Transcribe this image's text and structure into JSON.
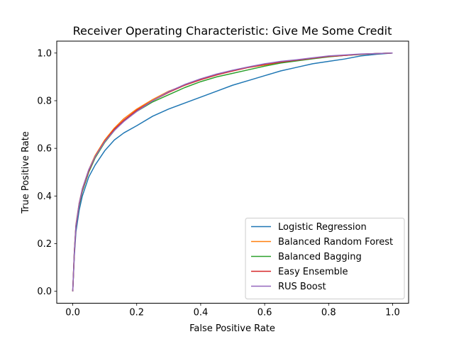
{
  "chart_data": {
    "type": "line",
    "title": "Receiver Operating Characteristic: Give Me Some Credit",
    "xlabel": "False Positive Rate",
    "ylabel": "True Positive Rate",
    "xlim": [
      -0.05,
      1.05
    ],
    "ylim": [
      -0.05,
      1.05
    ],
    "xticks": [
      0.0,
      0.2,
      0.4,
      0.6,
      0.8,
      1.0
    ],
    "yticks": [
      0.0,
      0.2,
      0.4,
      0.6,
      0.8,
      1.0
    ],
    "xtick_labels": [
      "0.0",
      "0.2",
      "0.4",
      "0.6",
      "0.8",
      "1.0"
    ],
    "ytick_labels": [
      "0.0",
      "0.2",
      "0.4",
      "0.6",
      "0.8",
      "1.0"
    ],
    "grid": false,
    "legend_position": "lower-right",
    "series": [
      {
        "name": "Logistic Regression",
        "color": "#1f77b4",
        "x": [
          0,
          0.005,
          0.01,
          0.02,
          0.03,
          0.05,
          0.07,
          0.1,
          0.13,
          0.16,
          0.2,
          0.25,
          0.3,
          0.35,
          0.4,
          0.45,
          0.5,
          0.55,
          0.6,
          0.65,
          0.7,
          0.75,
          0.8,
          0.85,
          0.9,
          0.95,
          1.0
        ],
        "y": [
          0,
          0.15,
          0.25,
          0.34,
          0.4,
          0.48,
          0.53,
          0.59,
          0.635,
          0.665,
          0.695,
          0.735,
          0.765,
          0.79,
          0.815,
          0.84,
          0.865,
          0.885,
          0.905,
          0.925,
          0.94,
          0.955,
          0.965,
          0.975,
          0.988,
          0.995,
          1.0
        ]
      },
      {
        "name": "Balanced Random Forest",
        "color": "#ff7f0e",
        "x": [
          0,
          0.005,
          0.01,
          0.02,
          0.03,
          0.05,
          0.07,
          0.1,
          0.13,
          0.16,
          0.2,
          0.25,
          0.3,
          0.35,
          0.4,
          0.45,
          0.5,
          0.55,
          0.6,
          0.65,
          0.7,
          0.75,
          0.8,
          0.85,
          0.9,
          0.95,
          1.0
        ],
        "y": [
          0,
          0.17,
          0.28,
          0.37,
          0.43,
          0.51,
          0.57,
          0.635,
          0.685,
          0.725,
          0.765,
          0.805,
          0.84,
          0.865,
          0.89,
          0.91,
          0.925,
          0.94,
          0.95,
          0.96,
          0.97,
          0.978,
          0.985,
          0.99,
          0.995,
          0.998,
          1.0
        ]
      },
      {
        "name": "Balanced Bagging",
        "color": "#2ca02c",
        "x": [
          0,
          0.005,
          0.01,
          0.02,
          0.03,
          0.05,
          0.07,
          0.1,
          0.13,
          0.16,
          0.2,
          0.25,
          0.3,
          0.35,
          0.4,
          0.45,
          0.5,
          0.55,
          0.6,
          0.65,
          0.7,
          0.75,
          0.8,
          0.85,
          0.9,
          0.95,
          1.0
        ],
        "y": [
          0,
          0.165,
          0.275,
          0.36,
          0.42,
          0.5,
          0.56,
          0.625,
          0.675,
          0.715,
          0.755,
          0.795,
          0.825,
          0.855,
          0.88,
          0.9,
          0.915,
          0.93,
          0.945,
          0.958,
          0.967,
          0.976,
          0.984,
          0.99,
          0.994,
          0.998,
          1.0
        ]
      },
      {
        "name": "Easy Ensemble",
        "color": "#d62728",
        "x": [
          0,
          0.005,
          0.01,
          0.02,
          0.03,
          0.05,
          0.07,
          0.1,
          0.13,
          0.16,
          0.2,
          0.25,
          0.3,
          0.35,
          0.4,
          0.45,
          0.5,
          0.55,
          0.6,
          0.65,
          0.7,
          0.75,
          0.8,
          0.85,
          0.9,
          0.95,
          1.0
        ],
        "y": [
          0,
          0.16,
          0.27,
          0.365,
          0.425,
          0.505,
          0.565,
          0.63,
          0.68,
          0.718,
          0.76,
          0.8,
          0.835,
          0.865,
          0.888,
          0.908,
          0.925,
          0.94,
          0.952,
          0.962,
          0.97,
          0.978,
          0.986,
          0.99,
          0.995,
          0.998,
          1.0
        ]
      },
      {
        "name": "RUS Boost",
        "color": "#9467bd",
        "x": [
          0,
          0.005,
          0.01,
          0.02,
          0.03,
          0.05,
          0.07,
          0.1,
          0.13,
          0.16,
          0.2,
          0.25,
          0.3,
          0.35,
          0.4,
          0.45,
          0.5,
          0.55,
          0.6,
          0.65,
          0.7,
          0.75,
          0.8,
          0.85,
          0.9,
          0.95,
          1.0
        ],
        "y": [
          0,
          0.165,
          0.275,
          0.368,
          0.43,
          0.51,
          0.565,
          0.628,
          0.675,
          0.713,
          0.755,
          0.8,
          0.838,
          0.868,
          0.892,
          0.912,
          0.928,
          0.942,
          0.955,
          0.965,
          0.972,
          0.98,
          0.988,
          0.992,
          0.996,
          0.998,
          1.0
        ]
      }
    ]
  }
}
